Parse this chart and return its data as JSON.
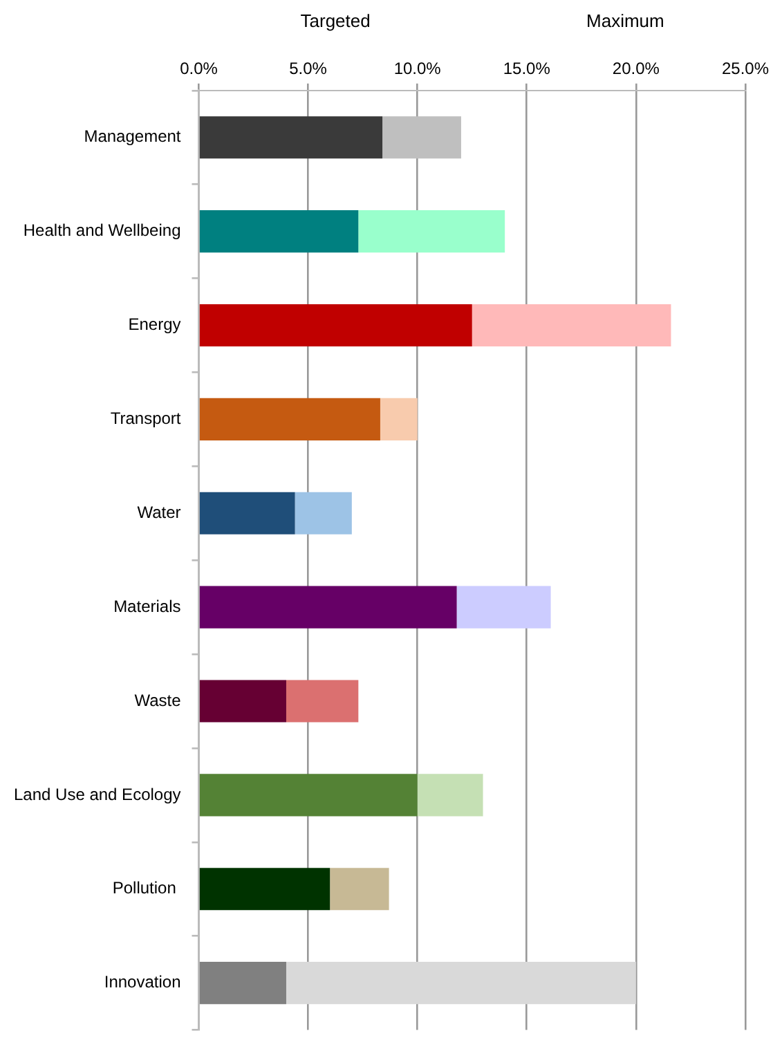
{
  "chart_data": {
    "type": "bar",
    "orientation": "horizontal",
    "stacked": true,
    "categories": [
      "Management",
      "Health and Wellbeing",
      "Energy",
      "Transport",
      "Water",
      "Materials",
      "Waste",
      "Land Use and Ecology",
      "Pollution ",
      "Innovation"
    ],
    "series": [
      {
        "colors": [
          "#3a3a3a",
          "#008080",
          "#c00000",
          "#c55a11",
          "#1f4e79",
          "#660066",
          "#660033",
          "#548235",
          "#003300",
          "#808080"
        ],
        "values": [
          8.4,
          7.3,
          12.5,
          8.3,
          4.4,
          11.8,
          4.0,
          10.0,
          6.0,
          4.0
        ]
      },
      {
        "colors": [
          "#bfbfbf",
          "#99ffcc",
          "#ffb9b9",
          "#f8cbad",
          "#9dc3e6",
          "#ccccff",
          "#db7070",
          "#c5e0b4",
          "#c7b995",
          "#d9d9d9"
        ],
        "values": [
          3.6,
          6.7,
          9.1,
          1.7,
          2.6,
          4.3,
          3.3,
          3.0,
          2.7,
          16.0
        ]
      }
    ],
    "xlim": [
      0,
      25
    ],
    "xticks": [
      {
        "value": 0,
        "label": "0.0%"
      },
      {
        "value": 5,
        "label": "5.0%"
      },
      {
        "value": 10,
        "label": "10.0%"
      },
      {
        "value": 15,
        "label": "15.0%"
      },
      {
        "value": 20,
        "label": "20.0%"
      },
      {
        "value": 25,
        "label": "25.0%"
      }
    ],
    "grid": "x",
    "annotations": [
      "Targeted",
      "Maximum"
    ]
  }
}
